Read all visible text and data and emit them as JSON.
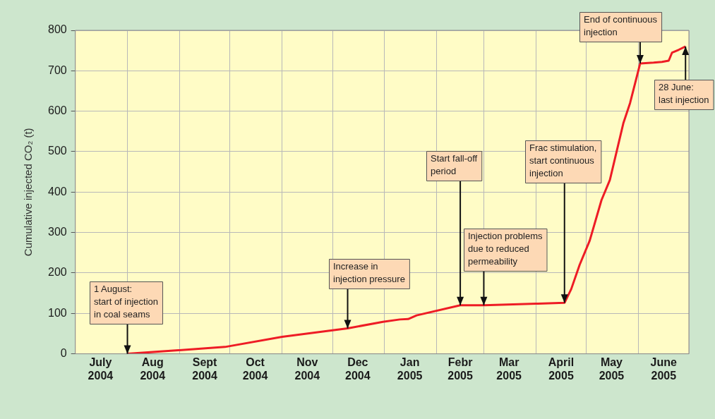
{
  "chart_data": {
    "type": "line",
    "ylabel": "Cumulative injected CO₂ (t)",
    "x": [
      "2004-08-01",
      "2004-09-28",
      "2004-11-01",
      "2004-12-01",
      "2004-12-10",
      "2004-12-31",
      "2005-01-10",
      "2005-01-15",
      "2005-01-20",
      "2005-02-15",
      "2005-03-01",
      "2005-03-15",
      "2005-04-01",
      "2005-04-18",
      "2005-04-22",
      "2005-04-27",
      "2005-05-03",
      "2005-05-10",
      "2005-05-15",
      "2005-05-23",
      "2005-05-27",
      "2005-06-02",
      "2005-06-10",
      "2005-06-15",
      "2005-06-19",
      "2005-06-21",
      "2005-06-25",
      "2005-06-29"
    ],
    "series": [
      {
        "color": "#ee1c25",
        "values": [
          0,
          17,
          42,
          58,
          63,
          79,
          85,
          86,
          95,
          120,
          120,
          122,
          124,
          126,
          160,
          220,
          280,
          380,
          430,
          570,
          620,
          718,
          720,
          722,
          725,
          745,
          752,
          760
        ]
      }
    ],
    "xlim": [
      "2004-07-01",
      "2005-07-01"
    ],
    "xticks": [
      {
        "value": "2004-07-01",
        "label": null
      },
      {
        "value": "2004-07-16",
        "label": "July 2004"
      },
      {
        "value": "2004-08-01",
        "label": null
      },
      {
        "value": "2004-08-16",
        "label": "Aug 2004"
      },
      {
        "value": "2004-09-01",
        "label": null
      },
      {
        "value": "2004-09-16",
        "label": "Sept 2004"
      },
      {
        "value": "2004-10-01",
        "label": null
      },
      {
        "value": "2004-10-16",
        "label": "Oct 2004"
      },
      {
        "value": "2004-11-01",
        "label": null
      },
      {
        "value": "2004-11-16",
        "label": "Nov 2004"
      },
      {
        "value": "2004-12-01",
        "label": null
      },
      {
        "value": "2004-12-16",
        "label": "Dec 2004"
      },
      {
        "value": "2005-01-01",
        "label": null
      },
      {
        "value": "2005-01-16",
        "label": "Jan 2005"
      },
      {
        "value": "2005-02-01",
        "label": null
      },
      {
        "value": "2005-02-15",
        "label": "Febr 2005"
      },
      {
        "value": "2005-03-01",
        "label": null
      },
      {
        "value": "2005-03-16",
        "label": "Mar 2005"
      },
      {
        "value": "2005-04-01",
        "label": null
      },
      {
        "value": "2005-04-16",
        "label": "April 2005"
      },
      {
        "value": "2005-05-01",
        "label": null
      },
      {
        "value": "2005-05-16",
        "label": "May 2005"
      },
      {
        "value": "2005-06-01",
        "label": null
      },
      {
        "value": "2005-06-16",
        "label": "June 2005"
      },
      {
        "value": "2005-07-01",
        "label": null
      }
    ],
    "ylim": [
      0,
      800
    ],
    "yticks": [
      0,
      100,
      200,
      300,
      400,
      500,
      600,
      700,
      800
    ],
    "grid": true,
    "legend": false,
    "marker": "none",
    "line_style": "solid",
    "annotations": [
      {
        "text": "1 August:\nstart of injection\nin coal seams",
        "x": "2004-08-01",
        "y": 0
      },
      {
        "text": "Increase in\ninjection pressure",
        "x": "2004-12-10",
        "y": 63
      },
      {
        "text": "Start fall-off\nperiod",
        "x": "2005-02-15",
        "y": 120
      },
      {
        "text": "Injection problems\ndue to reduced\npermeability",
        "x": "2005-03-01",
        "y": 120
      },
      {
        "text": "Frac stimulation,\nstart continuous\ninjection",
        "x": "2005-04-18",
        "y": 126
      },
      {
        "text": "End of continuous\ninjection",
        "x": "2005-06-02",
        "y": 718
      },
      {
        "text": "28 June:\nlast injection",
        "x": "2005-06-29",
        "y": 760
      }
    ]
  }
}
